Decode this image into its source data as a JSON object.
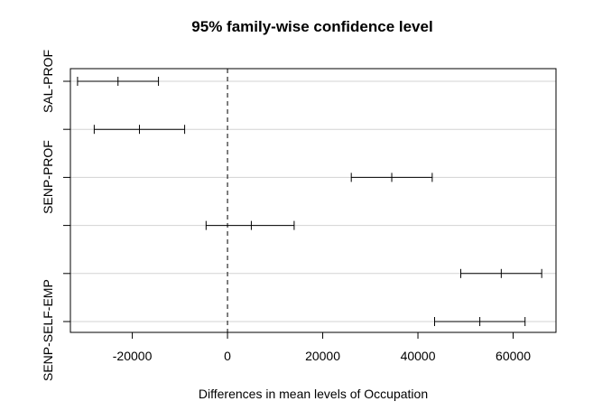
{
  "chart_data": {
    "type": "errorbar",
    "title": "95% family-wise confidence level",
    "xlabel": "Differences in mean levels of Occupation",
    "ylabel": "",
    "xlim": [
      -33000,
      69000
    ],
    "xticks": [
      -20000,
      0,
      20000,
      40000,
      60000
    ],
    "xtick_labels": [
      "-20000",
      "0",
      "20000",
      "40000",
      "60000"
    ],
    "reference_line": 0,
    "grid": "horizontal",
    "y_labels_shown": [
      "SAL-PROF",
      "SENP-PROF",
      "SENP-SELF-EMP"
    ],
    "intervals": [
      {
        "lower": -31500,
        "estimate": -23000,
        "upper": -14500
      },
      {
        "lower": -28000,
        "estimate": -18500,
        "upper": -9000
      },
      {
        "lower": 26000,
        "estimate": 34500,
        "upper": 43000
      },
      {
        "lower": -4500,
        "estimate": 5000,
        "upper": 14000
      },
      {
        "lower": 49000,
        "estimate": 57500,
        "upper": 66000
      },
      {
        "lower": 43500,
        "estimate": 53000,
        "upper": 62500
      }
    ]
  }
}
